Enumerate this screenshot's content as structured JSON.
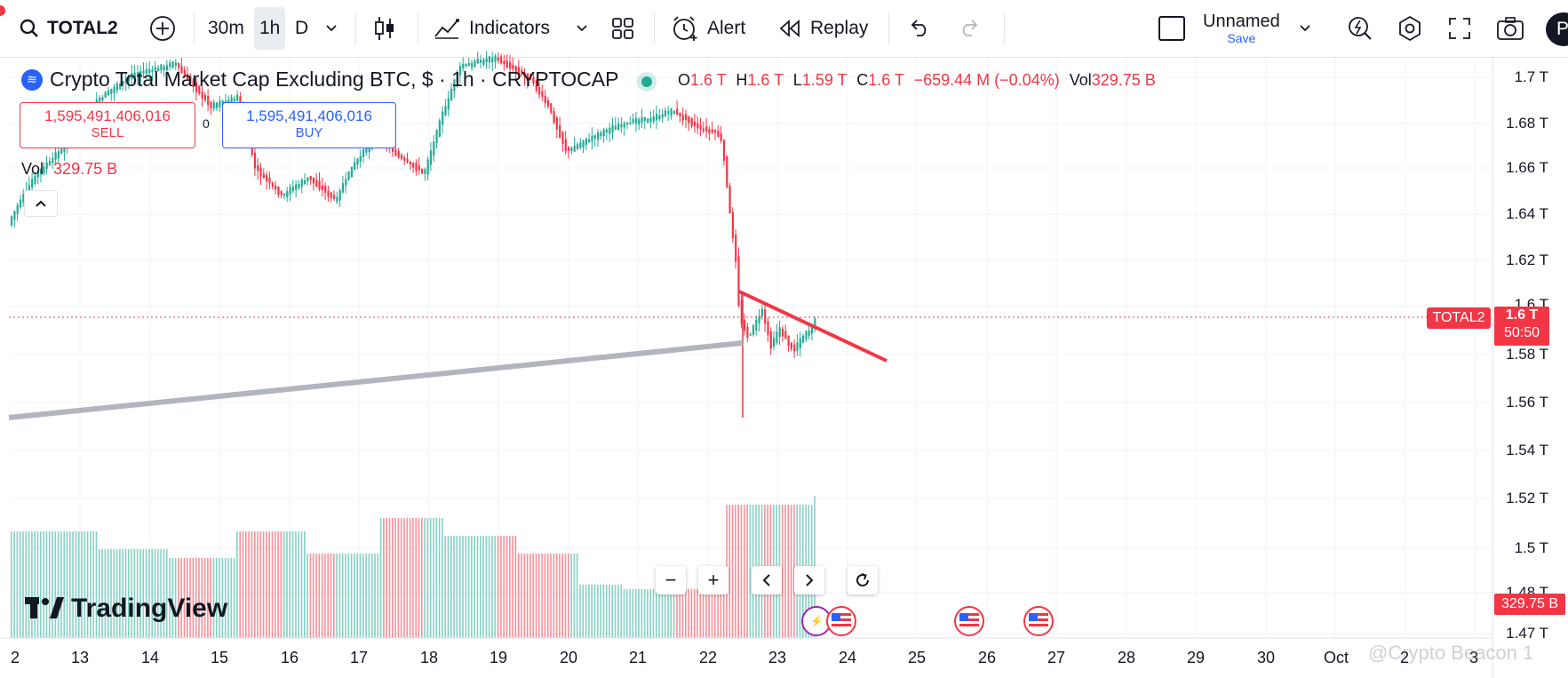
{
  "toolbar": {
    "symbol": "TOTAL2",
    "intervals": [
      "30m",
      "1h",
      "D"
    ],
    "active_interval": "1h",
    "indicators_label": "Indicators",
    "alert_label": "Alert",
    "replay_label": "Replay",
    "layout_name": "Unnamed",
    "layout_save": "Save",
    "avatar_initial": "P"
  },
  "legend": {
    "title": "Crypto Total Market Cap Excluding BTC, $ · 1h · CRYPTOCAP",
    "o_label": "O",
    "o_value": "1.6 T",
    "h_label": "H",
    "h_value": "1.6 T",
    "l_label": "L",
    "l_value": "1.59 T",
    "c_label": "C",
    "c_value": "1.6 T",
    "change": "−659.44 M (−0.04%)",
    "vol_label": "Vol",
    "vol_value": "329.75 B"
  },
  "trade": {
    "sell_price": "1,595,491,406,016",
    "sell_label": "SELL",
    "buy_price": "1,595,491,406,016",
    "buy_label": "BUY"
  },
  "volume": {
    "label": "Vol",
    "value": "329.75 B"
  },
  "price_axis": [
    "1.7 T",
    "1.68 T",
    "1.66 T",
    "1.64 T",
    "1.62 T",
    "1.6 T",
    "1.58 T",
    "1.56 T",
    "1.54 T",
    "1.52 T",
    "1.5 T",
    "1.48 T",
    "1.47 T"
  ],
  "time_axis": [
    "2",
    "13",
    "14",
    "15",
    "16",
    "17",
    "18",
    "19",
    "20",
    "21",
    "22",
    "23",
    "24",
    "25",
    "26",
    "27",
    "28",
    "29",
    "30",
    "Oct",
    "2",
    "3"
  ],
  "current": {
    "symbol_tag": "TOTAL2",
    "price": "1.6 T",
    "countdown": "50:50",
    "volume_tag": "329.75 B"
  },
  "branding": {
    "logo_text": "TradingView",
    "watermark": "@Crypto Beacon 1"
  },
  "colors": {
    "up": "#22ab94",
    "down": "#f23645",
    "accent": "#2962ff"
  }
}
